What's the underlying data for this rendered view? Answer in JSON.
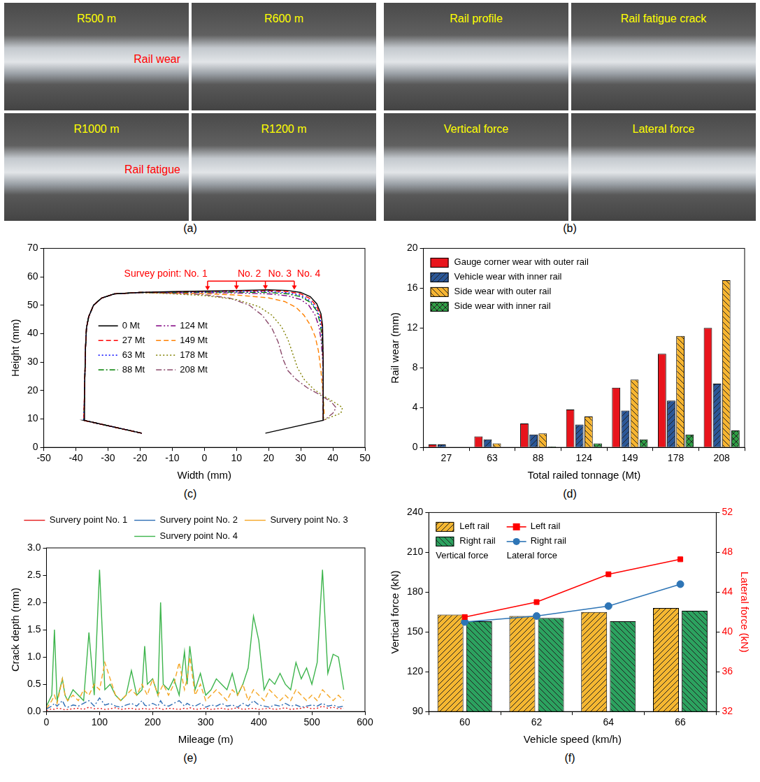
{
  "photos": [
    {
      "panel": "(a)",
      "tiles": [
        {
          "label": "R500 m",
          "color": "#ffff00",
          "note": {
            "text": "Rail wear",
            "color": "#ff0000"
          }
        },
        {
          "label": "R600 m",
          "color": "#ffff00"
        },
        {
          "label": "R1000 m",
          "color": "#ffff00",
          "note": {
            "text": "Rail fatigue",
            "color": "#ff0000"
          }
        },
        {
          "label": "R1200 m",
          "color": "#ffff00"
        }
      ]
    },
    {
      "panel": "(b)",
      "tiles": [
        {
          "label": "Rail profile",
          "color": "#ffff00"
        },
        {
          "label": "Rail fatigue crack",
          "color": "#ffff00"
        },
        {
          "label": "Vertical force",
          "color": "#ffff00"
        },
        {
          "label": "Lateral force",
          "color": "#ffff00"
        }
      ]
    }
  ],
  "chart_data": [
    {
      "panel": "(c)",
      "type": "line",
      "x_label": "Width (mm)",
      "y_label": "Height (mm)",
      "xlim": [
        -50,
        50
      ],
      "xticks": [
        -50,
        -40,
        -30,
        -20,
        -10,
        0,
        10,
        20,
        30,
        40,
        50
      ],
      "ylim": [
        0,
        70
      ],
      "yticks": [
        0,
        10,
        20,
        30,
        40,
        50,
        60,
        70
      ],
      "grid": false,
      "legend": "left",
      "annotations": [
        {
          "text": "Survey point: No. 1",
          "x": -12,
          "y": 61,
          "color": "#ff0000"
        },
        {
          "text": "No. 2",
          "x": 14,
          "y": 61,
          "color": "#ff0000"
        },
        {
          "text": "No. 3",
          "x": 23.5,
          "y": 61,
          "color": "#ff0000"
        },
        {
          "text": "No. 4",
          "x": 32.5,
          "y": 61,
          "color": "#ff0000"
        }
      ],
      "survey_points": {
        "x": [
          1,
          10,
          19,
          28
        ],
        "values": [
          55,
          55.2,
          55.3,
          55.2
        ],
        "color": "#ff0000"
      },
      "series": [
        {
          "name": "0 Mt",
          "color": "#000000",
          "line_style": "solid",
          "x": [
            -19.5,
            -37.5,
            -37.3,
            -37,
            -36.7,
            -36,
            -34.5,
            -32,
            -28,
            -20,
            -10,
            0,
            10,
            20,
            26,
            30,
            33,
            35,
            36.3,
            36.8,
            37,
            37,
            19
          ],
          "values": [
            5,
            9.5,
            20,
            35,
            42,
            46,
            50,
            52.5,
            54,
            54.5,
            54.8,
            55,
            55.2,
            55.4,
            55.2,
            54.5,
            53,
            50.5,
            47,
            43,
            30,
            9.5,
            5
          ]
        },
        {
          "name": "27 Mt",
          "color": "#ff0000",
          "line_style": "dashed",
          "x": [
            -19.5,
            -37.5,
            -37.3,
            -37,
            -36.7,
            -36,
            -34.5,
            -32,
            -28,
            -20,
            -10,
            0,
            10,
            20,
            26,
            30,
            33,
            35,
            36.2,
            36.7,
            37,
            37
          ],
          "values": [
            5,
            9.5,
            20,
            35,
            42,
            46,
            50,
            52.5,
            54,
            54.5,
            54.7,
            54.9,
            55,
            55.1,
            54.8,
            54,
            52.3,
            49.5,
            46,
            42,
            30,
            9.5
          ]
        },
        {
          "name": "63 Mt",
          "color": "#0000ff",
          "line_style": "dotted",
          "x": [
            -19.5,
            -37.5,
            -37.3,
            -37,
            -36.7,
            -36,
            -34.5,
            -32,
            -28,
            -20,
            -10,
            0,
            10,
            20,
            26,
            30,
            33,
            35,
            36.1,
            36.6,
            37,
            37
          ],
          "values": [
            5,
            9.5,
            20,
            35,
            42,
            46,
            50,
            52.5,
            54,
            54.5,
            54.6,
            54.7,
            54.8,
            54.8,
            54.4,
            53.5,
            51.5,
            48.5,
            45,
            41,
            30,
            9.5
          ]
        },
        {
          "name": "88 Mt",
          "color": "#008000",
          "line_style": "dashdot",
          "x": [
            -19.5,
            -37.5,
            -37.3,
            -37,
            -36.7,
            -36,
            -34.5,
            -32,
            -28,
            -20,
            -10,
            0,
            10,
            20,
            26,
            30,
            33,
            35,
            36,
            36.5,
            37,
            37
          ],
          "values": [
            5,
            9.5,
            20,
            35,
            42,
            46,
            50,
            52.5,
            54,
            54.5,
            54.5,
            54.6,
            54.6,
            54.5,
            54,
            53,
            51,
            48,
            44,
            40,
            30,
            9.5
          ]
        },
        {
          "name": "124 Mt",
          "color": "#800080",
          "line_style": "dashdotdot",
          "x": [
            -19.5,
            -37.5,
            -37.3,
            -37,
            -36.7,
            -36,
            -34.5,
            -32,
            -28,
            -20,
            -10,
            0,
            10,
            20,
            26,
            30,
            32.5,
            34.5,
            35.8,
            36.4,
            37,
            37
          ],
          "values": [
            5,
            9.5,
            20,
            35,
            42,
            46,
            50,
            52.5,
            54,
            54.5,
            54.4,
            54.4,
            54.3,
            54,
            53.3,
            52,
            50,
            46.5,
            42,
            37,
            28,
            9.5
          ]
        },
        {
          "name": "149 Mt",
          "color": "#ff8000",
          "line_style": "dashed",
          "x": [
            -19.5,
            -37.5,
            -37.3,
            -37,
            -36.7,
            -36,
            -34.5,
            -32,
            -28,
            -20,
            -10,
            0,
            10,
            20,
            25,
            28.5,
            31,
            33,
            34.5,
            35.5,
            36.3,
            37,
            37.3,
            37
          ],
          "values": [
            5,
            9.5,
            20,
            35,
            42,
            46,
            50,
            52.5,
            54,
            54.5,
            54.3,
            54.1,
            53.6,
            52.6,
            51.3,
            49.3,
            46.5,
            43,
            39,
            34,
            27,
            18,
            12,
            9.5
          ]
        },
        {
          "name": "178 Mt",
          "color": "#808000",
          "line_style": "dotted",
          "x": [
            -19.5,
            -37.5,
            -37.3,
            -37,
            -36.7,
            -36,
            -34.5,
            -32,
            -28,
            -20,
            -10,
            0,
            10,
            17,
            21,
            24,
            26,
            27.5,
            29,
            31,
            34,
            38,
            41,
            43,
            42.5,
            39,
            37
          ],
          "values": [
            5,
            9.5,
            20,
            35,
            42,
            46,
            50,
            52.5,
            54,
            54.5,
            54,
            53.4,
            52,
            49.5,
            46.5,
            42.5,
            38,
            33,
            28,
            24,
            20.5,
            17.5,
            15.5,
            14,
            12,
            10.5,
            9.5
          ]
        },
        {
          "name": "208 Mt",
          "color": "#8b4a6b",
          "line_style": "dashdot",
          "x": [
            -19.5,
            -37.5,
            -37.3,
            -37,
            -36.7,
            -36,
            -34.5,
            -32,
            -28,
            -20,
            -10,
            0,
            8,
            14,
            18,
            21,
            23,
            24.5,
            26,
            28.5,
            32,
            36,
            39.5,
            41,
            40,
            38,
            37
          ],
          "values": [
            5,
            9.5,
            20,
            35,
            42,
            46,
            50,
            52.5,
            54,
            54.5,
            54.2,
            53.7,
            52.5,
            50,
            46.5,
            42,
            37,
            31,
            27,
            24,
            21,
            18.5,
            16,
            14,
            12,
            10.2,
            9.5
          ]
        }
      ]
    },
    {
      "panel": "(d)",
      "type": "bar",
      "x_label": "Total railed tonnage (Mt)",
      "y_label": "Rail wear (mm)",
      "categories": [
        27,
        63,
        88,
        124,
        149,
        178,
        208
      ],
      "ylim": [
        0,
        20
      ],
      "yticks": [
        0,
        4,
        8,
        12,
        16,
        20
      ],
      "grid": false,
      "legend": "upper left",
      "series": [
        {
          "name": "Gauge corner wear with outer rail",
          "color": "#e8141c",
          "values": [
            0.3,
            1.1,
            2.4,
            3.8,
            6.0,
            9.4,
            12.0
          ]
        },
        {
          "name": "Vehicle wear with inner rail",
          "color": "#2b5797",
          "values": [
            0.3,
            0.8,
            1.3,
            2.3,
            3.7,
            4.7,
            6.4
          ]
        },
        {
          "name": "Side wear with outer rail",
          "color": "#f7b531",
          "values": [
            0,
            0.4,
            1.4,
            3.1,
            6.8,
            11.2,
            16.8
          ]
        },
        {
          "name": "Side wear with inner rail",
          "color": "#2e9e44",
          "values": [
            0,
            0,
            0.1,
            0.4,
            0.8,
            1.3,
            1.7
          ]
        }
      ]
    },
    {
      "panel": "(e)",
      "type": "line",
      "x_label": "Mileage (m)",
      "y_label": "Crack depth (mm)",
      "x": [
        0,
        10,
        15,
        20,
        30,
        35,
        40,
        50,
        60,
        70,
        80,
        90,
        100,
        110,
        120,
        130,
        140,
        150,
        160,
        170,
        180,
        185,
        190,
        200,
        210,
        215,
        220,
        230,
        240,
        250,
        260,
        265,
        270,
        280,
        290,
        300,
        310,
        320,
        330,
        340,
        350,
        360,
        370,
        380,
        390,
        400,
        410,
        420,
        430,
        440,
        450,
        460,
        470,
        480,
        490,
        500,
        510,
        520,
        530,
        540,
        550,
        560
      ],
      "xlim": [
        0,
        600
      ],
      "xticks": [
        0,
        100,
        200,
        300,
        400,
        500,
        600
      ],
      "ylim": [
        0,
        3
      ],
      "yticks": [
        {
          "value": 0,
          "label": "0.0"
        },
        0.5,
        {
          "value": 1,
          "label": "1.0"
        },
        1.5,
        {
          "value": 2,
          "label": "2.0"
        },
        2.5,
        {
          "value": 3,
          "label": "3.0"
        }
      ],
      "grid": false,
      "legend": "top",
      "series": [
        {
          "name": "Survery point No. 1",
          "color": "#e41a1c",
          "line_style": "dotted",
          "values": [
            0.02,
            0.05,
            0.04,
            0.06,
            0.05,
            0.03,
            0.04,
            0.05,
            0.06,
            0.04,
            0.08,
            0.05,
            0.06,
            0.04,
            0.05,
            0.07,
            0.04,
            0.05,
            0.06,
            0.04,
            0.05,
            0.06,
            0.04,
            0.05,
            0.07,
            0.05,
            0.04,
            0.06,
            0.05,
            0.04,
            0.06,
            0.05,
            0.07,
            0.04,
            0.05,
            0.06,
            0.04,
            0.05,
            0.06,
            0.04,
            0.05,
            0.07,
            0.04,
            0.05,
            0.06,
            0.04,
            0.05,
            0.06,
            0.04,
            0.05,
            0.07,
            0.04,
            0.05,
            0.06,
            0.08,
            0.05,
            0.06,
            0.1,
            0.06,
            0.08,
            0.05,
            0.06
          ]
        },
        {
          "name": "Survery point No. 2",
          "color": "#2e6db4",
          "line_style": "dashdot",
          "values": [
            0.05,
            0.1,
            0.15,
            0.1,
            0.2,
            0.1,
            0.08,
            0.12,
            0.1,
            0.15,
            0.2,
            0.1,
            0.25,
            0.12,
            0.15,
            0.1,
            0.08,
            0.12,
            0.15,
            0.1,
            0.2,
            0.12,
            0.1,
            0.15,
            0.1,
            0.2,
            0.12,
            0.1,
            0.15,
            0.2,
            0.1,
            0.15,
            0.12,
            0.1,
            0.15,
            0.08,
            0.12,
            0.1,
            0.15,
            0.1,
            0.12,
            0.08,
            0.15,
            0.1,
            0.2,
            0.12,
            0.1,
            0.08,
            0.12,
            0.1,
            0.15,
            0.1,
            0.12,
            0.08,
            0.1,
            0.12,
            0.1,
            0.15,
            0.1,
            0.12,
            0.08,
            0.1
          ]
        },
        {
          "name": "Survery point No. 3",
          "color": "#f5a623",
          "line_style": "dashed",
          "values": [
            0.05,
            0.2,
            0.3,
            0.15,
            0.6,
            0.3,
            0.2,
            0.3,
            0.2,
            0.4,
            0.3,
            0.5,
            0.4,
            0.9,
            0.6,
            0.3,
            0.2,
            0.3,
            0.4,
            0.3,
            0.5,
            0.4,
            0.3,
            0.6,
            0.3,
            0.4,
            0.5,
            0.3,
            0.5,
            0.9,
            0.4,
            0.6,
            1.0,
            0.3,
            0.5,
            0.2,
            0.3,
            0.4,
            0.3,
            0.2,
            0.4,
            0.3,
            0.5,
            0.2,
            0.4,
            0.3,
            0.2,
            0.4,
            0.3,
            0.2,
            0.3,
            0.2,
            0.4,
            0.3,
            0.2,
            0.3,
            0.2,
            0.4,
            0.3,
            0.2,
            0.3,
            0.2
          ]
        },
        {
          "name": "Survery point No. 4",
          "color": "#3cb44b",
          "line_style": "solid",
          "values": [
            0.1,
            0.3,
            1.5,
            0.2,
            0.6,
            0.3,
            0.2,
            0.4,
            0.3,
            0.2,
            1.45,
            0.3,
            2.6,
            0.4,
            0.5,
            0.3,
            0.2,
            0.3,
            0.75,
            0.3,
            0.4,
            1.2,
            0.5,
            0.6,
            0.3,
            2.0,
            0.5,
            0.4,
            0.6,
            0.3,
            1.1,
            0.5,
            1.2,
            0.4,
            0.7,
            0.3,
            0.4,
            0.6,
            0.5,
            0.4,
            0.7,
            0.3,
            0.5,
            0.8,
            1.75,
            1.3,
            0.4,
            0.6,
            0.5,
            0.7,
            0.5,
            0.4,
            0.9,
            0.6,
            0.8,
            0.5,
            0.9,
            2.6,
            0.7,
            1.05,
            1.0,
            0.4
          ]
        }
      ]
    },
    {
      "panel": "(f)",
      "type": "bar",
      "x_label": "Vehicle speed (km/h)",
      "y_label": "Vertical force (kN)",
      "y2_label": "Lateral force (kN)",
      "categories": [
        60,
        62,
        64,
        66
      ],
      "ylim": [
        90,
        240
      ],
      "yticks": [
        90,
        120,
        150,
        180,
        210,
        240
      ],
      "y2lim": [
        32,
        52
      ],
      "y2ticks": [
        32,
        36,
        40,
        44,
        48,
        52
      ],
      "grid": false,
      "legend": "upper left",
      "series": [
        {
          "name": "Left rail",
          "group": "Vertical force",
          "type": "bar",
          "color": "#f5b731",
          "values": [
            163,
            162,
            165,
            168
          ]
        },
        {
          "name": "Right rail",
          "group": "Vertical force",
          "type": "bar",
          "color": "#2ca25f",
          "values": [
            158,
            160.5,
            158,
            166
          ]
        },
        {
          "name": "Left rail",
          "group": "Lateral force",
          "type": "line",
          "axis": "y2",
          "color": "#ff0000",
          "marker": "square",
          "values": [
            41.5,
            43.0,
            45.8,
            47.3
          ]
        },
        {
          "name": "Right rail",
          "group": "Lateral force",
          "type": "line",
          "axis": "y2",
          "color": "#2e75b6",
          "marker": "circle",
          "values": [
            41.0,
            41.6,
            42.6,
            44.8
          ]
        }
      ]
    }
  ]
}
